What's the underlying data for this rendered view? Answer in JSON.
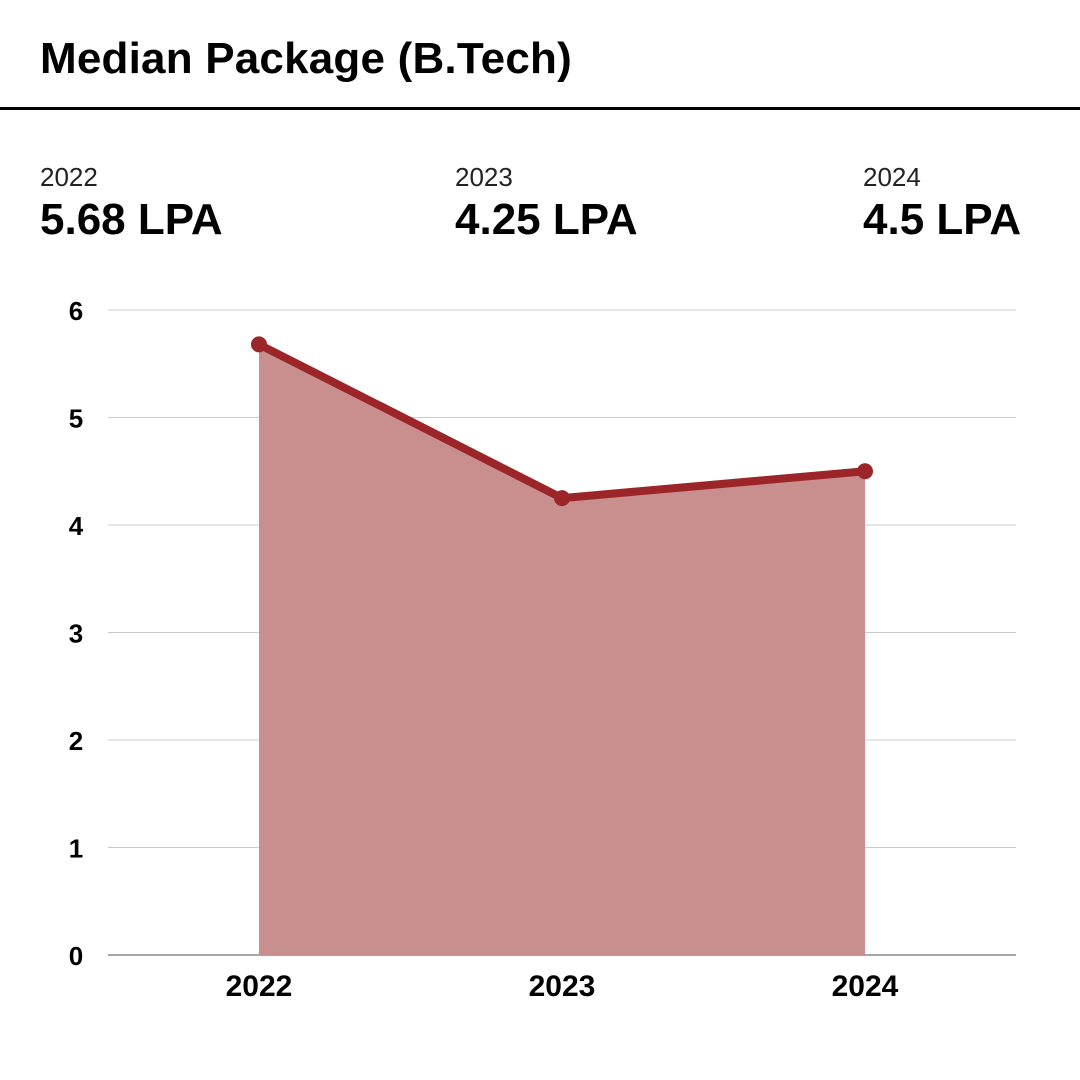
{
  "header": {
    "title": "Median Package (B.Tech)"
  },
  "stats": [
    {
      "year": "2022",
      "value": "5.68 LPA"
    },
    {
      "year": "2023",
      "value": "4.25 LPA"
    },
    {
      "year": "2024",
      "value": "4.5 LPA"
    }
  ],
  "chart_data": {
    "type": "area",
    "title": "",
    "xlabel": "",
    "ylabel": "",
    "categories": [
      "2022",
      "2023",
      "2024"
    ],
    "values": [
      5.68,
      4.25,
      4.5
    ],
    "ylim": [
      0,
      6
    ],
    "yticks": [
      0,
      1,
      2,
      3,
      4,
      5,
      6
    ],
    "grid": true,
    "legend": "none",
    "colors": {
      "line": "#9b2528",
      "fill": "#c98f8f",
      "grid": "#cccccc",
      "axis": "#888888"
    }
  }
}
